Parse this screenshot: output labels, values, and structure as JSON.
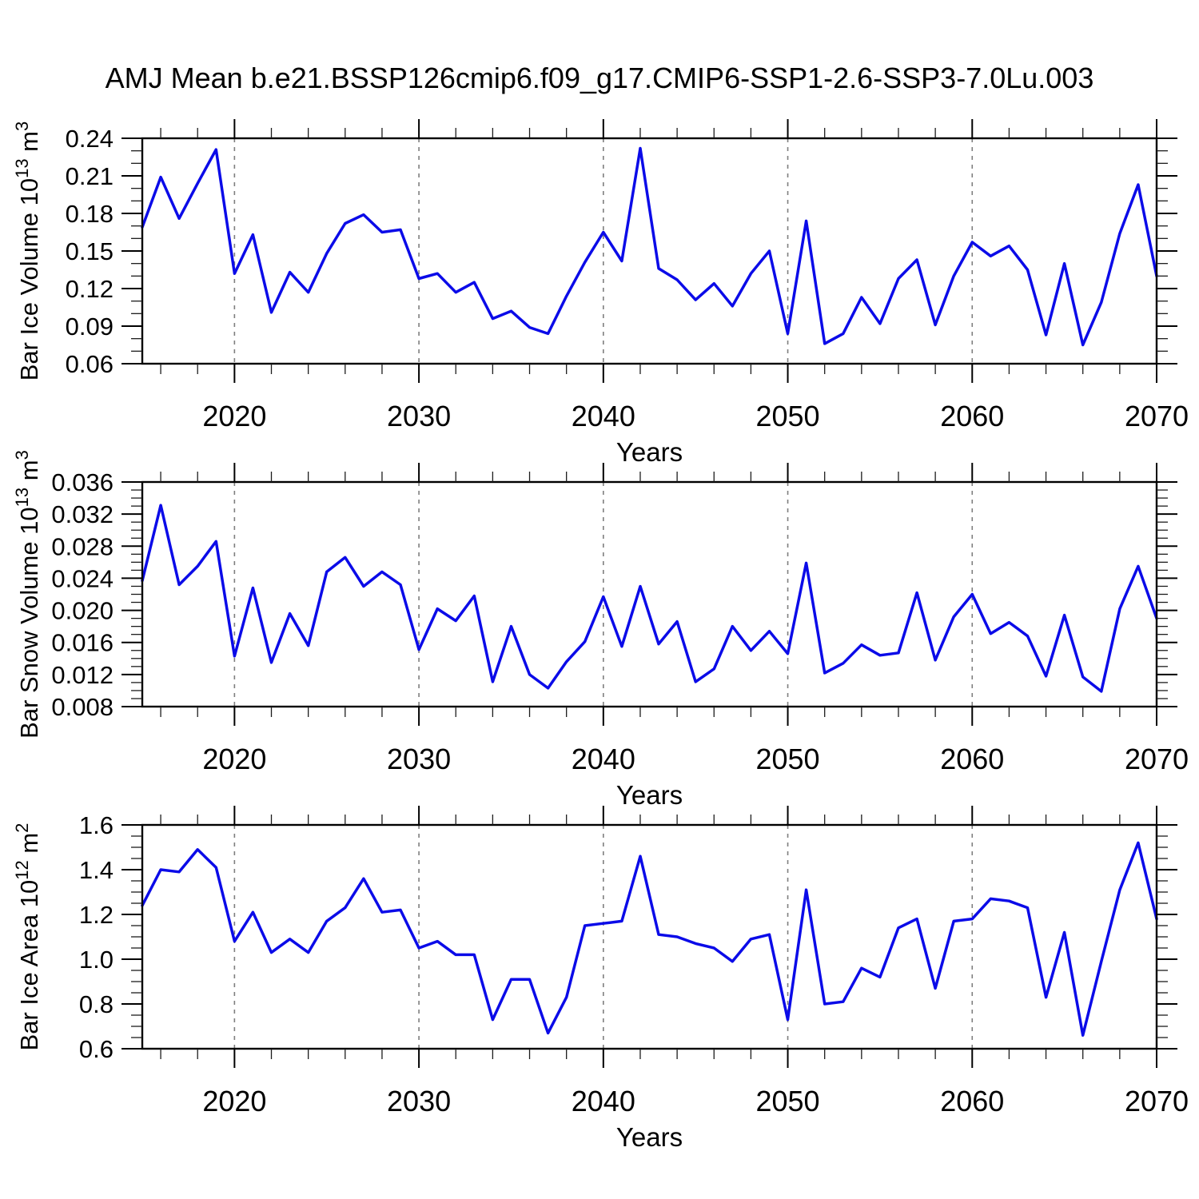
{
  "title": "AMJ Mean b.e21.BSSP126cmip6.f09_g17.CMIP6-SSP1-2.6-SSP3-7.0Lu.003",
  "line_color": "#0b0be8",
  "grid_color": "#7f7f7f",
  "chart_data": [
    {
      "type": "line",
      "ylabel": {
        "prefix": "Bar Ice Volume 10",
        "exp": "13",
        "unit": " m",
        "unit_exp": "3"
      },
      "xlabel": "Years",
      "xlim": [
        2015,
        2070
      ],
      "ylim": [
        0.06,
        0.24
      ],
      "xtick_values": [
        2020,
        2030,
        2040,
        2050,
        2060,
        2070
      ],
      "xtick_labels": [
        "2020",
        "2030",
        "2040",
        "2050",
        "2060",
        "2070"
      ],
      "xminor_step": 2,
      "grid_x": [
        2020,
        2030,
        2040,
        2050,
        2060
      ],
      "ytick_values": [
        0.06,
        0.09,
        0.12,
        0.15,
        0.18,
        0.21,
        0.24
      ],
      "ytick_labels": [
        "0.06",
        "0.09",
        "0.12",
        "0.15",
        "0.18",
        "0.21",
        "0.24"
      ],
      "yminor_step": 0.01,
      "x": [
        2015,
        2016,
        2017,
        2018,
        2019,
        2020,
        2021,
        2022,
        2023,
        2024,
        2025,
        2026,
        2027,
        2028,
        2029,
        2030,
        2031,
        2032,
        2033,
        2034,
        2035,
        2036,
        2037,
        2038,
        2039,
        2040,
        2041,
        2042,
        2043,
        2044,
        2045,
        2046,
        2047,
        2048,
        2049,
        2050,
        2051,
        2052,
        2053,
        2054,
        2055,
        2056,
        2057,
        2058,
        2059,
        2060,
        2061,
        2062,
        2063,
        2064,
        2065,
        2066,
        2067,
        2068,
        2069,
        2070
      ],
      "values": [
        0.169,
        0.209,
        0.176,
        0.204,
        0.231,
        0.132,
        0.163,
        0.101,
        0.133,
        0.117,
        0.148,
        0.172,
        0.179,
        0.165,
        0.167,
        0.128,
        0.132,
        0.117,
        0.125,
        0.096,
        0.102,
        0.089,
        0.084,
        0.114,
        0.141,
        0.165,
        0.142,
        0.232,
        0.136,
        0.127,
        0.111,
        0.124,
        0.106,
        0.132,
        0.15,
        0.084,
        0.174,
        0.076,
        0.084,
        0.113,
        0.092,
        0.128,
        0.143,
        0.091,
        0.13,
        0.157,
        0.146,
        0.154,
        0.135,
        0.083,
        0.14,
        0.075,
        0.109,
        0.164,
        0.203,
        0.13
      ]
    },
    {
      "type": "line",
      "ylabel": {
        "prefix": "Bar Snow Volume 10",
        "exp": "13",
        "unit": " m",
        "unit_exp": "3"
      },
      "xlabel": "Years",
      "xlim": [
        2015,
        2070
      ],
      "ylim": [
        0.008,
        0.036
      ],
      "xtick_values": [
        2020,
        2030,
        2040,
        2050,
        2060,
        2070
      ],
      "xtick_labels": [
        "2020",
        "2030",
        "2040",
        "2050",
        "2060",
        "2070"
      ],
      "xminor_step": 2,
      "grid_x": [
        2020,
        2030,
        2040,
        2050,
        2060
      ],
      "ytick_values": [
        0.008,
        0.012,
        0.016,
        0.02,
        0.024,
        0.028,
        0.032,
        0.036
      ],
      "ytick_labels": [
        "0.008",
        "0.012",
        "0.016",
        "0.020",
        "0.024",
        "0.028",
        "0.032",
        "0.036"
      ],
      "yminor_step": 0.001,
      "x": [
        2015,
        2016,
        2017,
        2018,
        2019,
        2020,
        2021,
        2022,
        2023,
        2024,
        2025,
        2026,
        2027,
        2028,
        2029,
        2030,
        2031,
        2032,
        2033,
        2034,
        2035,
        2036,
        2037,
        2038,
        2039,
        2040,
        2041,
        2042,
        2043,
        2044,
        2045,
        2046,
        2047,
        2048,
        2049,
        2050,
        2051,
        2052,
        2053,
        2054,
        2055,
        2056,
        2057,
        2058,
        2059,
        2060,
        2061,
        2062,
        2063,
        2064,
        2065,
        2066,
        2067,
        2068,
        2069,
        2070
      ],
      "values": [
        0.0237,
        0.0331,
        0.0232,
        0.0255,
        0.0286,
        0.0143,
        0.0228,
        0.0135,
        0.0196,
        0.0156,
        0.0248,
        0.0266,
        0.023,
        0.0248,
        0.0232,
        0.0151,
        0.0202,
        0.0187,
        0.0218,
        0.0111,
        0.018,
        0.012,
        0.0103,
        0.0136,
        0.0161,
        0.0217,
        0.0155,
        0.023,
        0.0158,
        0.0186,
        0.0111,
        0.0127,
        0.018,
        0.015,
        0.0174,
        0.0146,
        0.0259,
        0.0122,
        0.0134,
        0.0157,
        0.0144,
        0.0147,
        0.0222,
        0.0138,
        0.0192,
        0.022,
        0.0171,
        0.0185,
        0.0168,
        0.0118,
        0.0194,
        0.0117,
        0.0099,
        0.0202,
        0.0255,
        0.019
      ]
    },
    {
      "type": "line",
      "ylabel": {
        "prefix": "Bar Ice Area 10",
        "exp": "12",
        "unit": " m",
        "unit_exp": "2"
      },
      "xlabel": "Years",
      "xlim": [
        2015,
        2070
      ],
      "ylim": [
        0.6,
        1.6
      ],
      "xtick_values": [
        2020,
        2030,
        2040,
        2050,
        2060,
        2070
      ],
      "xtick_labels": [
        "2020",
        "2030",
        "2040",
        "2050",
        "2060",
        "2070"
      ],
      "xminor_step": 2,
      "grid_x": [
        2020,
        2030,
        2040,
        2050,
        2060
      ],
      "ytick_values": [
        0.6,
        0.8,
        1.0,
        1.2,
        1.4,
        1.6
      ],
      "ytick_labels": [
        "0.6",
        "0.8",
        "1.0",
        "1.2",
        "1.4",
        "1.6"
      ],
      "yminor_step": 0.05,
      "x": [
        2015,
        2016,
        2017,
        2018,
        2019,
        2020,
        2021,
        2022,
        2023,
        2024,
        2025,
        2026,
        2027,
        2028,
        2029,
        2030,
        2031,
        2032,
        2033,
        2034,
        2035,
        2036,
        2037,
        2038,
        2039,
        2040,
        2041,
        2042,
        2043,
        2044,
        2045,
        2046,
        2047,
        2048,
        2049,
        2050,
        2051,
        2052,
        2053,
        2054,
        2055,
        2056,
        2057,
        2058,
        2059,
        2060,
        2061,
        2062,
        2063,
        2064,
        2065,
        2066,
        2067,
        2068,
        2069,
        2070
      ],
      "values": [
        1.24,
        1.4,
        1.39,
        1.49,
        1.41,
        1.08,
        1.21,
        1.03,
        1.09,
        1.03,
        1.17,
        1.23,
        1.36,
        1.21,
        1.22,
        1.05,
        1.08,
        1.02,
        1.02,
        0.73,
        0.91,
        0.91,
        0.67,
        0.83,
        1.15,
        1.16,
        1.17,
        1.46,
        1.11,
        1.1,
        1.07,
        1.05,
        0.99,
        1.09,
        1.11,
        0.73,
        1.31,
        0.8,
        0.81,
        0.96,
        0.92,
        1.14,
        1.18,
        0.87,
        1.17,
        1.18,
        1.27,
        1.26,
        1.23,
        0.83,
        1.12,
        0.66,
        0.99,
        1.31,
        1.52,
        1.18
      ]
    }
  ]
}
